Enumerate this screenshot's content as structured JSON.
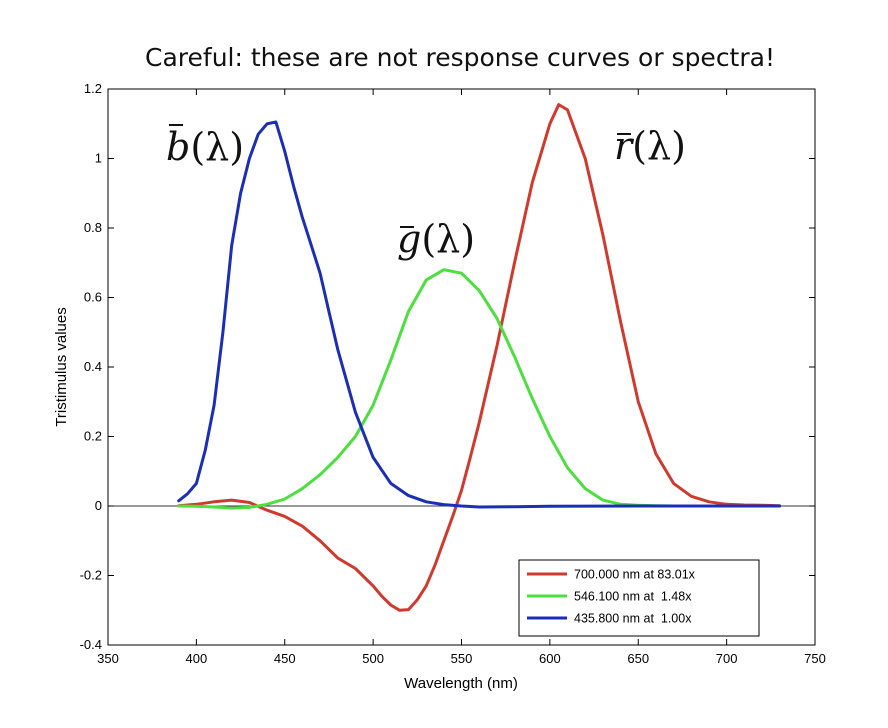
{
  "chart_data": {
    "type": "line",
    "title": "Careful: these are not response curves or spectra!",
    "xlabel": "Wavelength (nm)",
    "ylabel": "Tristimulus values",
    "xlim": [
      350,
      750
    ],
    "ylim": [
      -0.4,
      1.2
    ],
    "xticks": [
      "350",
      "400",
      "450",
      "500",
      "550",
      "600",
      "650",
      "700",
      "750"
    ],
    "yticks": [
      "-0.4",
      "-0.2",
      "0",
      "0.2",
      "0.4",
      "0.6",
      "0.8",
      "1",
      "1.2"
    ],
    "grid": false,
    "zero_line": true,
    "legend_position": "bottom-right",
    "series": [
      {
        "name": "700.000 nm at 83.01x",
        "color": "#d03a2e",
        "curve_label": {
          "base": "r",
          "paren": "(λ)"
        },
        "x": [
          390,
          400,
          410,
          420,
          430,
          440,
          450,
          460,
          470,
          480,
          490,
          500,
          505,
          510,
          515,
          520,
          525,
          530,
          535,
          540,
          545,
          550,
          555,
          560,
          570,
          580,
          590,
          600,
          605,
          610,
          620,
          630,
          640,
          650,
          660,
          670,
          680,
          690,
          700,
          710,
          720,
          730
        ],
        "y": [
          0.001,
          0.005,
          0.012,
          0.017,
          0.01,
          -0.012,
          -0.03,
          -0.058,
          -0.1,
          -0.15,
          -0.18,
          -0.23,
          -0.26,
          -0.285,
          -0.3,
          -0.298,
          -0.27,
          -0.23,
          -0.17,
          -0.1,
          -0.03,
          0.045,
          0.14,
          0.24,
          0.46,
          0.7,
          0.93,
          1.1,
          1.155,
          1.14,
          1.0,
          0.78,
          0.53,
          0.3,
          0.15,
          0.065,
          0.028,
          0.012,
          0.005,
          0.003,
          0.002,
          0.001
        ]
      },
      {
        "name": "546.100 nm at  1.48x",
        "color": "#4dde3f",
        "curve_label": {
          "base": "g",
          "paren": "(λ)"
        },
        "x": [
          390,
          400,
          410,
          420,
          430,
          440,
          450,
          460,
          470,
          480,
          490,
          500,
          510,
          520,
          530,
          540,
          550,
          560,
          570,
          580,
          590,
          600,
          610,
          620,
          630,
          640,
          650,
          660,
          670,
          680,
          690,
          700,
          710,
          720,
          730
        ],
        "y": [
          0.0,
          -0.001,
          -0.003,
          -0.006,
          -0.004,
          0.005,
          0.02,
          0.05,
          0.09,
          0.14,
          0.2,
          0.29,
          0.42,
          0.56,
          0.65,
          0.68,
          0.67,
          0.62,
          0.54,
          0.43,
          0.31,
          0.2,
          0.11,
          0.05,
          0.017,
          0.005,
          0.002,
          0.001,
          0.0,
          0.0,
          0.0,
          0.0,
          0.0,
          0.0,
          0.0
        ]
      },
      {
        "name": "435.800 nm at  1.00x",
        "color": "#1b2fb5",
        "curve_label": {
          "base": "b",
          "paren": "(λ)"
        },
        "x": [
          390,
          395,
          400,
          405,
          410,
          415,
          420,
          425,
          430,
          435,
          440,
          445,
          450,
          455,
          460,
          465,
          470,
          475,
          480,
          490,
          500,
          510,
          520,
          530,
          540,
          550,
          560,
          580,
          600,
          650,
          700,
          730
        ],
        "y": [
          0.015,
          0.035,
          0.065,
          0.16,
          0.29,
          0.5,
          0.75,
          0.9,
          1.0,
          1.07,
          1.1,
          1.105,
          1.02,
          0.92,
          0.83,
          0.75,
          0.67,
          0.56,
          0.45,
          0.27,
          0.14,
          0.065,
          0.03,
          0.012,
          0.004,
          0.0,
          -0.003,
          -0.002,
          -0.001,
          0.0,
          0.0,
          0.0
        ]
      }
    ]
  }
}
